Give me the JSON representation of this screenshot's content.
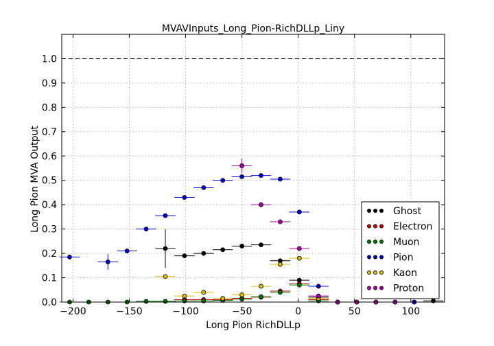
{
  "chart_data": {
    "type": "scatter",
    "title": "MVAVInputs_Long_Pion-RichDLLp_Liny",
    "xlabel": "Long Pion RichDLLp",
    "ylabel": "Long Pion MVA Output",
    "xlim": [
      -210,
      130
    ],
    "ylim": [
      0,
      1.1
    ],
    "grid": true,
    "legend": "bottom-right",
    "reference_line": 1.0,
    "xticks": [
      -200,
      -150,
      -100,
      -50,
      0,
      50,
      100
    ],
    "xtick_labels": [
      "−200",
      "−150",
      "−100",
      "−50",
      "0",
      "50",
      "100"
    ],
    "yticks": [
      0,
      0.1,
      0.2,
      0.3,
      0.4,
      0.5,
      0.6,
      0.7,
      0.8,
      0.9,
      1.0
    ],
    "ytick_labels": [
      "0.0",
      "0.1",
      "0.2",
      "0.3",
      "0.4",
      "0.5",
      "0.6",
      "0.7",
      "0.8",
      "0.9",
      "1.0"
    ],
    "series": [
      {
        "name": "Ghost",
        "color": "#000000",
        "edge": "#000000",
        "bar": "#000000",
        "points": [
          {
            "x": -118,
            "y": 0.22,
            "xerr": 9,
            "yerr": 0.08
          },
          {
            "x": -101,
            "y": 0.19,
            "xerr": 9,
            "yerr": 0.01
          },
          {
            "x": -84,
            "y": 0.2,
            "xerr": 9,
            "yerr": 0.005
          },
          {
            "x": -67,
            "y": 0.215,
            "xerr": 9,
            "yerr": 0.005
          },
          {
            "x": -50,
            "y": 0.23,
            "xerr": 9,
            "yerr": 0.004
          },
          {
            "x": -33,
            "y": 0.235,
            "xerr": 9,
            "yerr": 0.004
          },
          {
            "x": -16,
            "y": 0.17,
            "xerr": 9,
            "yerr": 0.003
          },
          {
            "x": 1,
            "y": 0.09,
            "xerr": 9,
            "yerr": 0.003
          },
          {
            "x": 18,
            "y": 0.02,
            "xerr": 9,
            "yerr": 0.002
          },
          {
            "x": 35,
            "y": 0.0,
            "xerr": 9,
            "yerr": 0
          },
          {
            "x": 52,
            "y": 0.0,
            "xerr": 9,
            "yerr": 0
          },
          {
            "x": 69,
            "y": 0.0,
            "xerr": 9,
            "yerr": 0
          },
          {
            "x": 86,
            "y": 0.0,
            "xerr": 9,
            "yerr": 0
          },
          {
            "x": 103,
            "y": 0.0,
            "xerr": 9,
            "yerr": 0
          },
          {
            "x": 120,
            "y": 0.005,
            "xerr": 9,
            "yerr": 0
          }
        ]
      },
      {
        "name": "Electron",
        "color": "#cc0000",
        "edge": "#000000",
        "bar": "#cc0000",
        "points": [
          {
            "x": -101,
            "y": 0.01,
            "xerr": 9,
            "yerr": 0.005
          },
          {
            "x": -84,
            "y": 0.01,
            "xerr": 9,
            "yerr": 0.004
          },
          {
            "x": -67,
            "y": 0.01,
            "xerr": 9,
            "yerr": 0.003
          },
          {
            "x": -50,
            "y": 0.015,
            "xerr": 9,
            "yerr": 0.003
          },
          {
            "x": -33,
            "y": 0.02,
            "xerr": 9,
            "yerr": 0.003
          },
          {
            "x": -16,
            "y": 0.045,
            "xerr": 9,
            "yerr": 0.003
          },
          {
            "x": 1,
            "y": 0.075,
            "xerr": 9,
            "yerr": 0.003
          },
          {
            "x": 18,
            "y": 0.01,
            "xerr": 9,
            "yerr": 0.002
          },
          {
            "x": 35,
            "y": 0.0,
            "xerr": 9,
            "yerr": 0
          },
          {
            "x": 52,
            "y": 0.0,
            "xerr": 9,
            "yerr": 0
          }
        ]
      },
      {
        "name": "Muon",
        "color": "#007700",
        "edge": "#000000",
        "bar": "#007700",
        "points": [
          {
            "x": -203,
            "y": 0.0,
            "xerr": 9,
            "yerr": 0
          },
          {
            "x": -186,
            "y": 0.0,
            "xerr": 9,
            "yerr": 0
          },
          {
            "x": -169,
            "y": 0.0,
            "xerr": 9,
            "yerr": 0
          },
          {
            "x": -152,
            "y": 0.0,
            "xerr": 9,
            "yerr": 0
          },
          {
            "x": -135,
            "y": 0.003,
            "xerr": 9,
            "yerr": 0
          },
          {
            "x": -118,
            "y": 0.003,
            "xerr": 9,
            "yerr": 0
          },
          {
            "x": -101,
            "y": 0.005,
            "xerr": 9,
            "yerr": 0.003
          },
          {
            "x": -84,
            "y": 0.005,
            "xerr": 9,
            "yerr": 0.003
          },
          {
            "x": -67,
            "y": 0.007,
            "xerr": 9,
            "yerr": 0.003
          },
          {
            "x": -50,
            "y": 0.012,
            "xerr": 9,
            "yerr": 0.003
          },
          {
            "x": -33,
            "y": 0.022,
            "xerr": 9,
            "yerr": 0.003
          },
          {
            "x": -16,
            "y": 0.04,
            "xerr": 9,
            "yerr": 0.003
          },
          {
            "x": 1,
            "y": 0.07,
            "xerr": 9,
            "yerr": 0.003
          },
          {
            "x": 18,
            "y": 0.005,
            "xerr": 9,
            "yerr": 0
          },
          {
            "x": 35,
            "y": 0.0,
            "xerr": 9,
            "yerr": 0
          }
        ]
      },
      {
        "name": "Pion",
        "color": "#0000cc",
        "edge": "#000000",
        "bar": "#0000cc",
        "points": [
          {
            "x": -203,
            "y": 0.185,
            "xerr": 9,
            "yerr": 0.004
          },
          {
            "x": -169,
            "y": 0.165,
            "xerr": 9,
            "yerr": 0.032
          },
          {
            "x": -152,
            "y": 0.21,
            "xerr": 9,
            "yerr": 0.005
          },
          {
            "x": -135,
            "y": 0.3,
            "xerr": 9,
            "yerr": 0.004
          },
          {
            "x": -118,
            "y": 0.355,
            "xerr": 9,
            "yerr": 0.004
          },
          {
            "x": -101,
            "y": 0.43,
            "xerr": 9,
            "yerr": 0.003
          },
          {
            "x": -84,
            "y": 0.47,
            "xerr": 9,
            "yerr": 0.003
          },
          {
            "x": -67,
            "y": 0.5,
            "xerr": 9,
            "yerr": 0.003
          },
          {
            "x": -50,
            "y": 0.515,
            "xerr": 9,
            "yerr": 0.003
          },
          {
            "x": -33,
            "y": 0.52,
            "xerr": 9,
            "yerr": 0.003
          },
          {
            "x": -16,
            "y": 0.505,
            "xerr": 9,
            "yerr": 0.003
          },
          {
            "x": 1,
            "y": 0.37,
            "xerr": 9,
            "yerr": 0.003
          },
          {
            "x": 18,
            "y": 0.065,
            "xerr": 9,
            "yerr": 0.002
          },
          {
            "x": 35,
            "y": 0.0,
            "xerr": 9,
            "yerr": 0
          },
          {
            "x": 52,
            "y": 0.0,
            "xerr": 9,
            "yerr": 0
          },
          {
            "x": 69,
            "y": 0.0,
            "xerr": 9,
            "yerr": 0
          },
          {
            "x": 86,
            "y": 0.0,
            "xerr": 9,
            "yerr": 0
          },
          {
            "x": 103,
            "y": 0.0,
            "xerr": 9,
            "yerr": 0
          }
        ]
      },
      {
        "name": "Kaon",
        "color": "#ddbb00",
        "edge": "#000000",
        "bar": "#ddbb00",
        "points": [
          {
            "x": -118,
            "y": 0.105,
            "xerr": 9,
            "yerr": 0.004
          },
          {
            "x": -101,
            "y": 0.025,
            "xerr": 9,
            "yerr": 0.003
          },
          {
            "x": -84,
            "y": 0.04,
            "xerr": 9,
            "yerr": 0.003
          },
          {
            "x": -67,
            "y": 0.015,
            "xerr": 9,
            "yerr": 0.003
          },
          {
            "x": -50,
            "y": 0.03,
            "xerr": 9,
            "yerr": 0.003
          },
          {
            "x": -33,
            "y": 0.065,
            "xerr": 9,
            "yerr": 0.003
          },
          {
            "x": -16,
            "y": 0.155,
            "xerr": 9,
            "yerr": 0.003
          },
          {
            "x": 1,
            "y": 0.18,
            "xerr": 9,
            "yerr": 0.003
          },
          {
            "x": 18,
            "y": 0.015,
            "xerr": 9,
            "yerr": 0.002
          },
          {
            "x": 35,
            "y": 0.0,
            "xerr": 9,
            "yerr": 0
          }
        ]
      },
      {
        "name": "Proton",
        "color": "#aa00aa",
        "edge": "#000000",
        "bar": "#aa00aa",
        "points": [
          {
            "x": -50,
            "y": 0.56,
            "xerr": 9,
            "yerr": 0.03
          },
          {
            "x": -33,
            "y": 0.4,
            "xerr": 9,
            "yerr": 0.005
          },
          {
            "x": -16,
            "y": 0.33,
            "xerr": 9,
            "yerr": 0.004
          },
          {
            "x": 1,
            "y": 0.22,
            "xerr": 9,
            "yerr": 0.003
          },
          {
            "x": 18,
            "y": 0.025,
            "xerr": 9,
            "yerr": 0.002
          },
          {
            "x": 35,
            "y": 0.0,
            "xerr": 9,
            "yerr": 0
          },
          {
            "x": 52,
            "y": 0.0,
            "xerr": 9,
            "yerr": 0
          },
          {
            "x": 69,
            "y": 0.0,
            "xerr": 9,
            "yerr": 0
          },
          {
            "x": 86,
            "y": 0.0,
            "xerr": 9,
            "yerr": 0
          }
        ]
      }
    ]
  }
}
